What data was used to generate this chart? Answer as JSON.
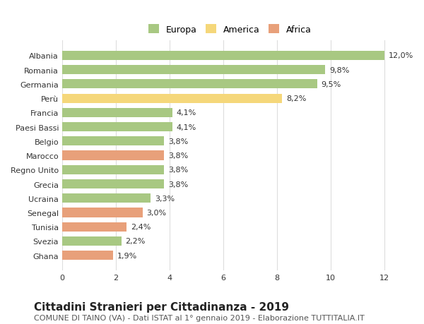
{
  "categories": [
    "Albania",
    "Romania",
    "Germania",
    "Perù",
    "Francia",
    "Paesi Bassi",
    "Belgio",
    "Marocco",
    "Regno Unito",
    "Grecia",
    "Ucraina",
    "Senegal",
    "Tunisia",
    "Svezia",
    "Ghana"
  ],
  "values": [
    12.0,
    9.8,
    9.5,
    8.2,
    4.1,
    4.1,
    3.8,
    3.8,
    3.8,
    3.8,
    3.3,
    3.0,
    2.4,
    2.2,
    1.9
  ],
  "labels": [
    "12,0%",
    "9,8%",
    "9,5%",
    "8,2%",
    "4,1%",
    "4,1%",
    "3,8%",
    "3,8%",
    "3,8%",
    "3,8%",
    "3,3%",
    "3,0%",
    "2,4%",
    "2,2%",
    "1,9%"
  ],
  "colors": [
    "#a8c882",
    "#a8c882",
    "#a8c882",
    "#f5d77a",
    "#a8c882",
    "#a8c882",
    "#a8c882",
    "#e8a07a",
    "#a8c882",
    "#a8c882",
    "#a8c882",
    "#e8a07a",
    "#e8a07a",
    "#a8c882",
    "#e8a07a"
  ],
  "continent": [
    "Europa",
    "Europa",
    "Europa",
    "America",
    "Europa",
    "Europa",
    "Europa",
    "Africa",
    "Europa",
    "Europa",
    "Europa",
    "Africa",
    "Africa",
    "Europa",
    "Africa"
  ],
  "legend_colors": {
    "Europa": "#a8c882",
    "America": "#f5d77a",
    "Africa": "#e8a07a"
  },
  "title": "Cittadini Stranieri per Cittadinanza - 2019",
  "subtitle": "COMUNE DI TAINO (VA) - Dati ISTAT al 1° gennaio 2019 - Elaborazione TUTTITALIA.IT",
  "xlim": [
    0,
    12.5
  ],
  "xticks": [
    0,
    2,
    4,
    6,
    8,
    10,
    12
  ],
  "background_color": "#ffffff",
  "grid_color": "#dddddd",
  "bar_height": 0.65,
  "title_fontsize": 11,
  "subtitle_fontsize": 8,
  "label_fontsize": 8,
  "tick_fontsize": 8,
  "legend_fontsize": 9
}
